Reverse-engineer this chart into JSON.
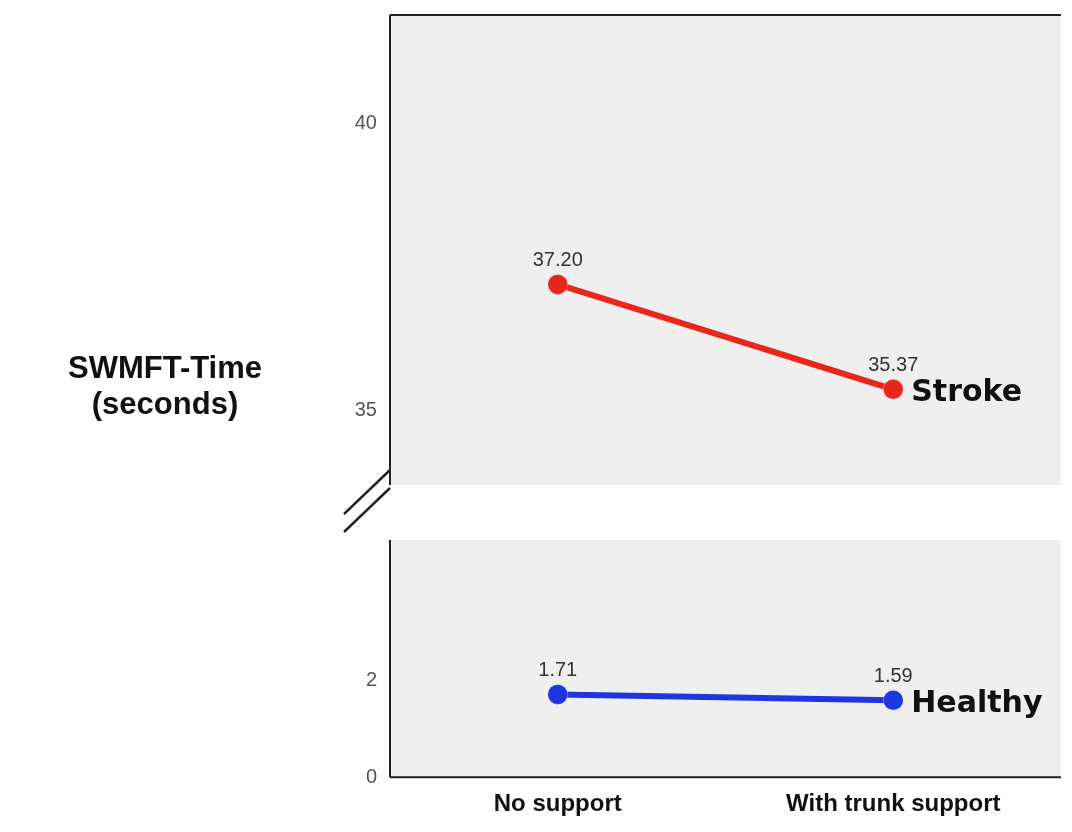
{
  "chart_data": [
    {
      "type": "line",
      "ylabel": "SWMFT-Time (seconds)",
      "categories": [
        null,
        null
      ],
      "series": [
        {
          "name": "Stroke",
          "color": "#e8261c",
          "values": [
            37.2,
            35.37
          ],
          "value_labels": [
            "37.20",
            "35.37"
          ]
        }
      ],
      "ylim": [
        33.7,
        41.9
      ],
      "yticks": [
        35,
        40
      ],
      "tick_labels": "y",
      "grid": false,
      "legend": false,
      "marker": "circle"
    },
    {
      "type": "line",
      "categories": [
        "No support",
        "With trunk support"
      ],
      "series": [
        {
          "name": "Healthy",
          "color": "#1f35e0",
          "values": [
            1.71,
            1.59
          ],
          "value_labels": [
            "1.71",
            "1.59"
          ]
        }
      ],
      "ylim": [
        0,
        4.9
      ],
      "yticks": [
        0,
        2
      ],
      "grid": false,
      "legend": false,
      "marker": "circle"
    }
  ]
}
